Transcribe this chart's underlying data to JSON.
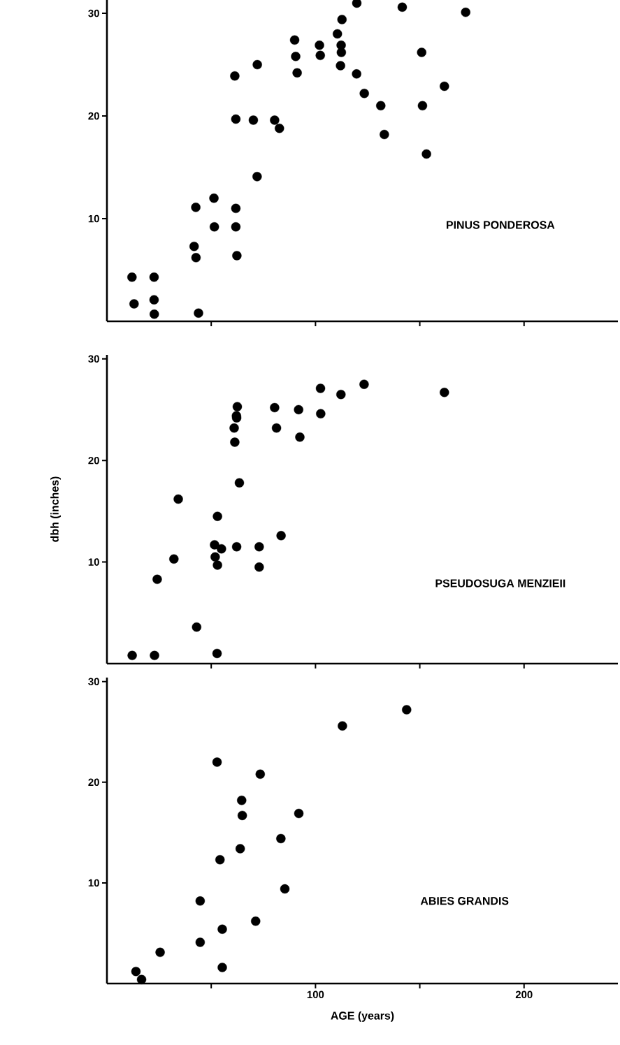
{
  "chart_data": [
    {
      "type": "scatter",
      "annotations": [
        "PINUS PONDEROSA"
      ],
      "xlim": [
        0,
        245
      ],
      "ylim": [
        0,
        31.3
      ],
      "xticks": [
        {
          "value": 50,
          "label": null
        },
        {
          "value": 100,
          "label": null
        },
        {
          "value": 150,
          "label": null
        },
        {
          "value": 200,
          "label": null
        }
      ],
      "yticks": [
        10,
        20,
        30
      ],
      "tick_labels": "y",
      "marker": "circle",
      "grid": false,
      "series": [
        {
          "color": "#000000",
          "x": [
            12.0,
            13.0,
            22.6,
            22.6,
            22.7,
            42.6,
            41.8,
            42.7,
            43.9,
            51.3,
            51.5,
            61.8,
            61.8,
            62.3,
            61.3,
            61.8,
            72.1,
            70.2,
            72.0,
            80.4,
            82.7,
            90.0,
            90.5,
            91.2,
            101.9,
            102.3,
            110.5,
            112.7,
            112.3,
            112.4,
            112.0,
            119.8,
            119.7,
            123.4,
            131.3,
            133.0,
            141.6,
            150.9,
            151.3,
            153.2,
            161.8,
            172.0
          ],
          "values": [
            4.3,
            1.7,
            4.3,
            2.1,
            0.7,
            11.1,
            7.3,
            6.2,
            0.8,
            12.0,
            9.2,
            11.0,
            9.2,
            6.4,
            23.9,
            19.7,
            25.0,
            19.6,
            14.1,
            19.6,
            18.8,
            27.4,
            25.8,
            24.2,
            26.9,
            25.9,
            28.0,
            29.4,
            26.9,
            26.2,
            24.9,
            31.0,
            24.1,
            22.2,
            21.0,
            18.2,
            30.6,
            26.2,
            21.0,
            16.3,
            22.9,
            30.1
          ]
        }
      ]
    },
    {
      "type": "scatter",
      "ylabel": "dbh (inches)",
      "annotations": [
        "PSEUDOSUGA MENZIEII"
      ],
      "xlim": [
        0,
        245
      ],
      "ylim": [
        0,
        30.4
      ],
      "xticks": [
        {
          "value": 50,
          "label": null
        },
        {
          "value": 100,
          "label": null
        },
        {
          "value": 150,
          "label": null
        },
        {
          "value": 200,
          "label": null
        }
      ],
      "yticks": [
        10,
        20,
        30
      ],
      "tick_labels": "y",
      "marker": "circle",
      "grid": false,
      "series": [
        {
          "color": "#000000",
          "x": [
            12.1,
            22.8,
            24.1,
            32.1,
            34.2,
            43.0,
            52.8,
            53.0,
            51.6,
            54.9,
            51.9,
            53.0,
            62.2,
            73.0,
            73.0,
            83.5,
            63.5,
            61.3,
            61.0,
            62.2,
            62.1,
            62.5,
            80.4,
            81.3,
            91.9,
            92.5,
            102.4,
            102.5,
            112.2,
            123.3,
            161.8
          ],
          "values": [
            0.8,
            0.8,
            8.3,
            10.3,
            16.2,
            3.6,
            1.0,
            14.5,
            11.7,
            11.3,
            10.5,
            9.7,
            11.5,
            11.5,
            9.5,
            12.6,
            17.8,
            21.8,
            23.2,
            24.2,
            24.4,
            25.3,
            25.2,
            23.2,
            25.0,
            22.3,
            27.1,
            24.6,
            26.5,
            27.5,
            26.7
          ]
        }
      ]
    },
    {
      "type": "scatter",
      "xlabel": "AGE (years)",
      "annotations": [
        "ABIES GRANDIS"
      ],
      "xlim": [
        0,
        245
      ],
      "ylim": [
        0,
        30.4
      ],
      "xticks": [
        {
          "value": 50,
          "label": null
        },
        100,
        {
          "value": 150,
          "label": null
        },
        200
      ],
      "yticks": [
        10,
        20,
        30
      ],
      "marker": "circle",
      "grid": false,
      "series": [
        {
          "color": "#000000",
          "x": [
            13.9,
            16.6,
            25.5,
            44.7,
            44.7,
            52.8,
            54.2,
            55.3,
            55.3,
            63.9,
            64.6,
            64.9,
            73.5,
            71.3,
            83.4,
            85.3,
            92.0,
            112.9,
            143.7
          ],
          "values": [
            1.2,
            0.4,
            3.1,
            8.2,
            4.1,
            22.0,
            12.3,
            5.4,
            1.6,
            13.4,
            18.2,
            16.7,
            20.8,
            6.2,
            14.4,
            9.4,
            16.9,
            25.6,
            27.2
          ]
        }
      ]
    }
  ]
}
